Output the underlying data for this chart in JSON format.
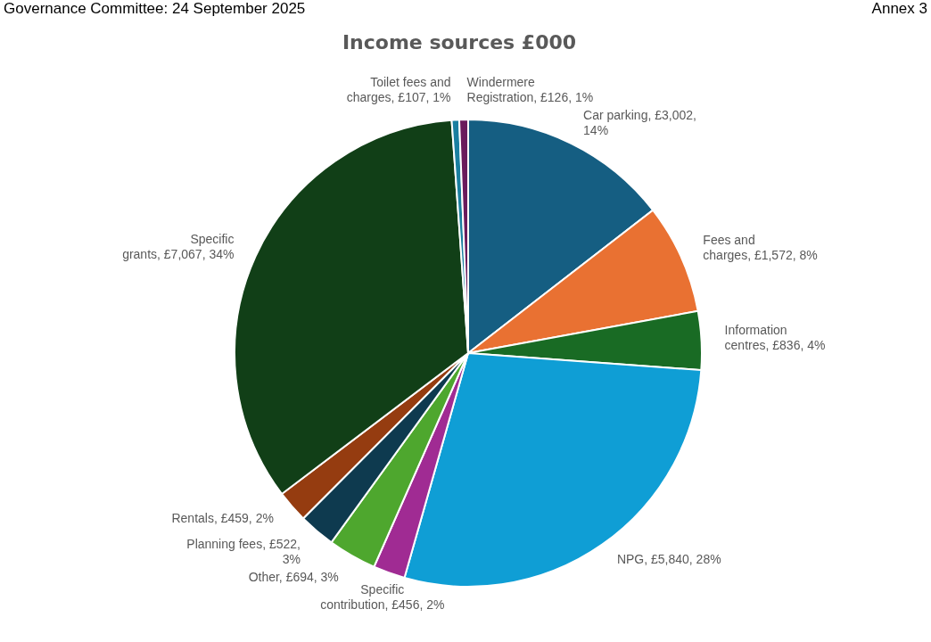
{
  "chart_data": {
    "type": "pie",
    "title": "Income sources £000",
    "categories": [
      "Car parking",
      "Fees and charges",
      "Information centres",
      "NPG",
      "Specific contribution",
      "Other",
      "Planning fees",
      "Rentals",
      "Specific grants",
      "Toilet fees and charges",
      "Windermere Registration"
    ],
    "values": [
      3002,
      1572,
      836,
      5840,
      456,
      694,
      522,
      459,
      7067,
      107,
      126
    ],
    "value_labels": [
      "£3,002, 14%",
      "£1,572, 8%",
      "£836, 4%",
      "£5,840, 28%",
      "£456, 2%",
      "£694, 3%",
      "£522, 3%",
      "£459, 2%",
      "£7,067, 34%",
      "£107, 1%",
      "£126, 1%"
    ],
    "colors": [
      "#155e82",
      "#e97132",
      "#196b24",
      "#0f9ed5",
      "#a02b93",
      "#4ea72e",
      "#0e3a4f",
      "#953c10",
      "#113f17",
      "#1a7fa0",
      "#6a1b5c"
    ],
    "annotations": [
      "Governance Committee: 24 September 2025",
      "Annex 3"
    ],
    "legend": false
  }
}
